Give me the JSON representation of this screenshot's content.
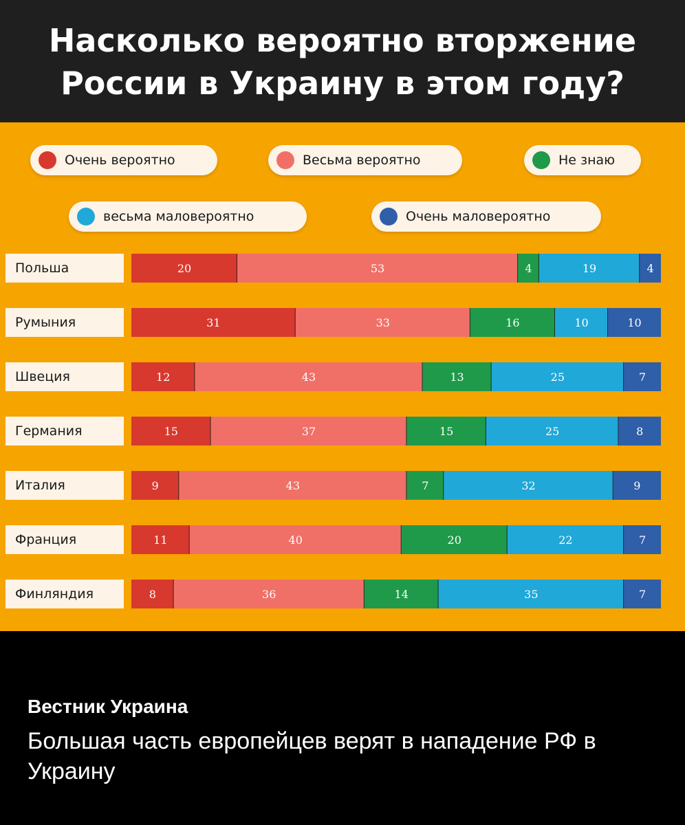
{
  "title_line1": "Насколько вероятно вторжение",
  "title_line2": "России в Украину в этом году?",
  "legend": [
    {
      "label": "Очень вероятно",
      "color": "#d8392e"
    },
    {
      "label": "Весьма вероятно",
      "color": "#f07068"
    },
    {
      "label": "Не знаю",
      "color": "#1f9a4a"
    },
    {
      "label": "весьма маловероятно",
      "color": "#20a8d8"
    },
    {
      "label": "Очень маловероятно",
      "color": "#2e5fa8"
    }
  ],
  "chart_data": {
    "type": "bar",
    "orientation": "horizontal",
    "stacked": true,
    "categories": [
      "Польша",
      "Румыния",
      "Швеция",
      "Германия",
      "Италия",
      "Франция",
      "Финляндия"
    ],
    "series": [
      {
        "name": "Очень вероятно",
        "color": "#d8392e",
        "values": [
          20,
          31,
          12,
          15,
          9,
          11,
          8
        ]
      },
      {
        "name": "Весьма вероятно",
        "color": "#f07068",
        "values": [
          53,
          33,
          43,
          37,
          43,
          40,
          36
        ]
      },
      {
        "name": "Не знаю",
        "color": "#1f9a4a",
        "values": [
          4,
          16,
          13,
          15,
          7,
          20,
          14
        ]
      },
      {
        "name": "весьма маловероятно",
        "color": "#20a8d8",
        "values": [
          19,
          10,
          25,
          25,
          32,
          22,
          35
        ]
      },
      {
        "name": "Очень маловероятно",
        "color": "#2e5fa8",
        "values": [
          4,
          10,
          7,
          8,
          9,
          7,
          7
        ]
      }
    ]
  },
  "footer": {
    "source": "Вестник Украина",
    "caption": "Большая часть европейцев верят в нападение РФ в Украину"
  }
}
